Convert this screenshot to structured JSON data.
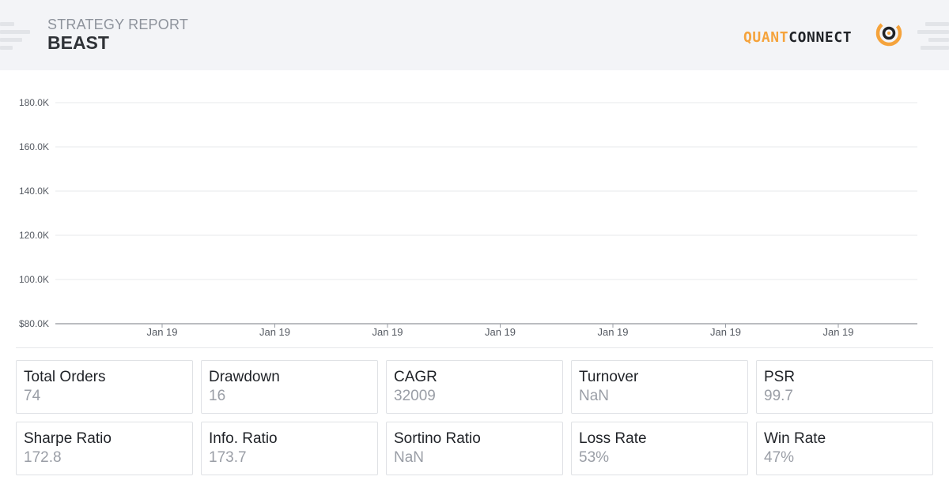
{
  "header": {
    "report_label": "STRATEGY REPORT",
    "strategy_name": "BEAST",
    "logo": {
      "part1": "QUANT",
      "part2": "CONNECT",
      "icon": "quantconnect-logo-icon"
    }
  },
  "colors": {
    "header_bg": "#f3f4f7",
    "brand_orange": "#f5a33c",
    "brand_dark": "#1f2227",
    "stat_value": "#9a9ea6"
  },
  "chart_data": {
    "type": "line",
    "title": "",
    "xlabel": "",
    "ylabel": "",
    "ylim": [
      80000,
      180000
    ],
    "y_ticks": [
      {
        "value": 180000,
        "label": "180.0K"
      },
      {
        "value": 160000,
        "label": "160.0K"
      },
      {
        "value": 140000,
        "label": "140.0K"
      },
      {
        "value": 120000,
        "label": "120.0K"
      },
      {
        "value": 100000,
        "label": "100.0K"
      },
      {
        "value": 80000,
        "label": "$80.0K"
      }
    ],
    "x_ticks": [
      "Jan 19",
      "Jan 19",
      "Jan 19",
      "Jan 19",
      "Jan 19",
      "Jan 19",
      "Jan 19"
    ],
    "series": [],
    "grid": true,
    "legend": "none"
  },
  "stats": [
    [
      {
        "label": "Total Orders",
        "value": "74"
      },
      {
        "label": "Drawdown",
        "value": "16"
      },
      {
        "label": "CAGR",
        "value": "32009"
      },
      {
        "label": "Turnover",
        "value": "NaN"
      },
      {
        "label": "PSR",
        "value": "99.7"
      }
    ],
    [
      {
        "label": "Sharpe Ratio",
        "value": "172.8"
      },
      {
        "label": "Info. Ratio",
        "value": "173.7"
      },
      {
        "label": "Sortino Ratio",
        "value": "NaN"
      },
      {
        "label": "Loss Rate",
        "value": "53%"
      },
      {
        "label": "Win Rate",
        "value": "47%"
      }
    ]
  ]
}
